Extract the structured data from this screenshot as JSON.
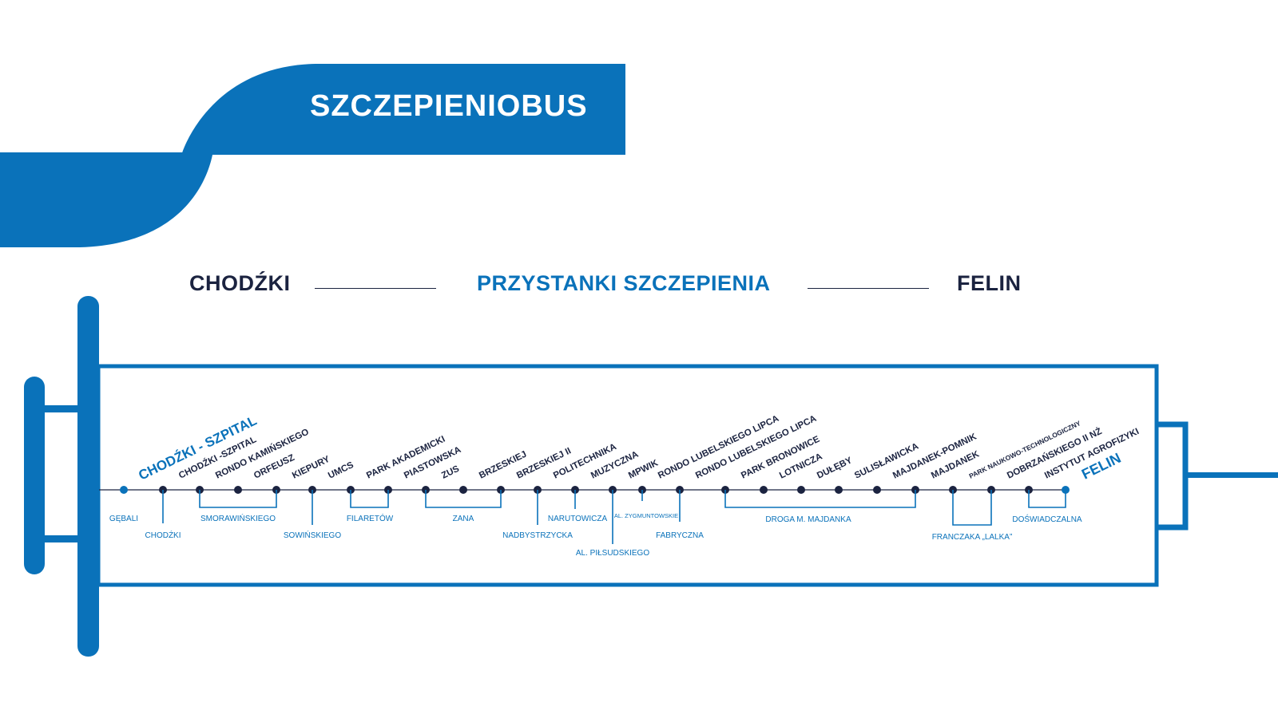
{
  "banner": {
    "title": "SZCZEPIENIOBUS"
  },
  "header": {
    "from": "CHODŹKI",
    "center": "PRZYSTANKI SZCZEPIENIA",
    "to": "FELIN"
  },
  "colors": {
    "blue": "#0a72ba",
    "navy": "#1b2340",
    "white": "#ffffff"
  },
  "route": {
    "start_label": "CHODŹKI - SZPITAL",
    "end_label": "FELIN",
    "vaccination_stops": [
      "CHODŹKI -SZPITAL",
      "RONDO KAMIŃSKIEGO",
      "ORFEUSZ",
      "KIEPURY",
      "UMCS",
      "PARK AKADEMICKI",
      "PIASTOWSKA",
      "ZUS",
      "BRZESKIEJ",
      "BRZESKIEJ II",
      "POLITECHNIKA",
      "MUZYCZNA",
      "MPWIK",
      "RONDO LUBELSKIEGO LIPCA",
      "RONDO LUBELSKIEGO LIPCA",
      "PARK BRONOWICE",
      "LOTNICZA",
      "DUŁĘBY",
      "SULISŁAWICKA",
      "MAJDANEK-POMNIK",
      "MAJDANEK",
      "PARK NAUKOWO-TECHNOLOGICZNY",
      "DOBRZAŃSKIEGO II NŻ",
      "INSTYTUT AGROFIZYKI"
    ],
    "streets": [
      "GĘBALI",
      "CHODŹKI",
      "SMORAWIŃSKIEGO",
      "SOWIŃSKIEGO",
      "FILARETÓW",
      "ZANA",
      "NADBYSTRZYCKA",
      "NARUTOWICZA",
      "AL. PIŁSUDSKIEGO",
      "AL. ZYGMUNTOWSKIE",
      "FABRYCZNA",
      "DROGA M. MAJDANKA",
      "FRANCZAKA „LALKA”",
      "DOŚWIADCZALNA"
    ]
  }
}
